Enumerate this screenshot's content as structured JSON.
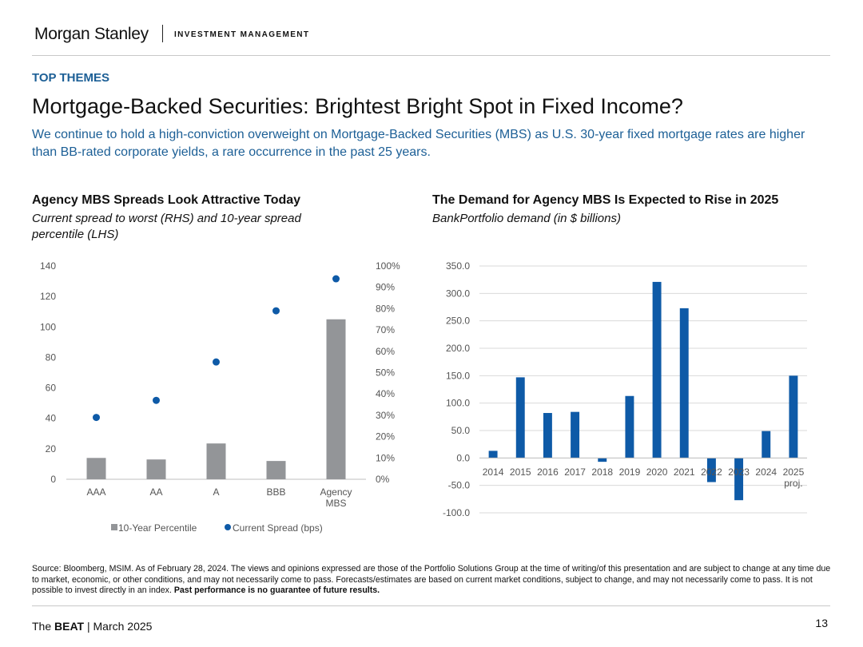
{
  "header": {
    "brand": "Morgan Stanley",
    "unit": "INVESTMENT MANAGEMENT"
  },
  "section_label": "TOP THEMES",
  "title": "Mortgage-Backed Securities: Brightest Bright Spot in Fixed Income?",
  "subtitle": "We continue to hold a high-conviction overweight on Mortgage-Backed Securities (MBS) as U.S. 30-year fixed mortgage rates are higher than BB-rated corporate yields, a rare occurrence in the past 25 years.",
  "colors": {
    "brand_blue": "#1c5f96",
    "bar_gray": "#939598",
    "bar_blue": "#0e5aa7",
    "dot_blue": "#0e5aa7"
  },
  "chart_data": [
    {
      "type": "bar",
      "title": "Agency MBS Spreads Look Attractive Today",
      "subtitle": "Current spread to worst (RHS) and 10-year spread percentile (LHS)",
      "categories": [
        "AAA",
        "AA",
        "A",
        "BBB",
        "Agency MBS"
      ],
      "left_axis": {
        "ylim": [
          0,
          140
        ],
        "ticks": [
          "0",
          "20",
          "40",
          "60",
          "80",
          "100",
          "120",
          "140"
        ]
      },
      "right_axis": {
        "ylim": [
          0,
          1
        ],
        "ticks": [
          "0%",
          "10%",
          "20%",
          "30%",
          "40%",
          "50%",
          "60%",
          "70%",
          "80%",
          "90%",
          "100%"
        ]
      },
      "series": [
        {
          "name": "10-Year Percentile",
          "type": "bar",
          "axis": "left",
          "values": [
            14,
            13,
            23.5,
            12,
            105
          ]
        },
        {
          "name": "Current Spread (bps)",
          "type": "scatter",
          "axis": "right",
          "values": [
            0.29,
            0.37,
            0.55,
            0.79,
            0.94
          ]
        }
      ],
      "legend": "bottom"
    },
    {
      "type": "bar",
      "title": "The Demand for Agency MBS Is Expected to Rise in 2025",
      "subtitle": "BankPortfolio demand (in $ billions)",
      "categories": [
        "2014",
        "2015",
        "2016",
        "2017",
        "2018",
        "2019",
        "2020",
        "2021",
        "2022",
        "2023",
        "2024",
        "2025 proj."
      ],
      "values": [
        13,
        147,
        82,
        84,
        -7,
        113,
        321,
        273,
        -44,
        -77,
        49,
        150
      ],
      "ylim": [
        -100,
        350
      ],
      "y_ticks": [
        "-100.0",
        "-50.0",
        "0.0",
        "50.0",
        "100.0",
        "150.0",
        "200.0",
        "250.0",
        "300.0",
        "350.0"
      ],
      "grid": true
    }
  ],
  "footnote": {
    "text": "Source: Bloomberg, MSIM. As of February 28, 2024. The views and opinions expressed are those of the Portfolio Solutions Group at the time of writing/of this presentation and are subject to change at any time due to market, economic, or other conditions, and may not necessarily come to pass. Forecasts/estimates are based on current market conditions, subject to change, and may not necessarily come to pass. It is not possible to invest directly in an index.",
    "bold": "Past performance is no guarantee of future results."
  },
  "footer": {
    "prefix": "The ",
    "bold": "BEAT",
    "suffix": " | March 2025",
    "page_number": "13"
  }
}
